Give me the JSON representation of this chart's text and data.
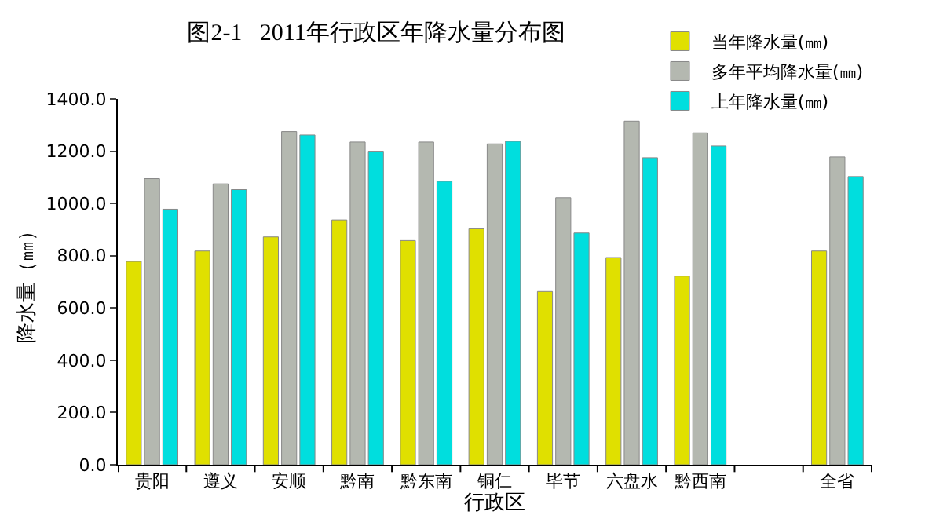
{
  "chart_data": {
    "type": "bar",
    "title": "图2-1   2011年行政区年降水量分布图",
    "xlabel": "行政区",
    "ylabel": "降水量（㎜）",
    "categories": [
      "贵阳",
      "遵义",
      "安顺",
      "黔南",
      "黔东南",
      "铜仁",
      "毕节",
      "六盘水",
      "黔西南",
      null,
      "全省"
    ],
    "series": [
      {
        "name": "当年降水量(㎜)",
        "color": "#e0e000",
        "values": [
          778,
          818,
          872,
          937,
          858,
          903,
          663,
          793,
          722,
          null,
          818
        ]
      },
      {
        "name": "多年平均降水量(㎜)",
        "color": "#b4b8b0",
        "values": [
          1095,
          1075,
          1275,
          1235,
          1235,
          1228,
          1022,
          1315,
          1270,
          null,
          1178
        ]
      },
      {
        "name": "上年降水量(㎜)",
        "color": "#00dede",
        "values": [
          978,
          1053,
          1262,
          1200,
          1085,
          1238,
          887,
          1175,
          1220,
          null,
          1103
        ]
      }
    ],
    "ylim": [
      0,
      1400
    ],
    "yticks": [
      {
        "value": 0,
        "label": "0.0"
      },
      {
        "value": 200,
        "label": "200.0"
      },
      {
        "value": 400,
        "label": "400.0"
      },
      {
        "value": 600,
        "label": "600.0"
      },
      {
        "value": 800,
        "label": "800.0"
      },
      {
        "value": 1000,
        "label": "1000.0"
      },
      {
        "value": 1200,
        "label": "1200.0"
      },
      {
        "value": 1400,
        "label": "1400.0"
      }
    ],
    "legend": "top right"
  }
}
